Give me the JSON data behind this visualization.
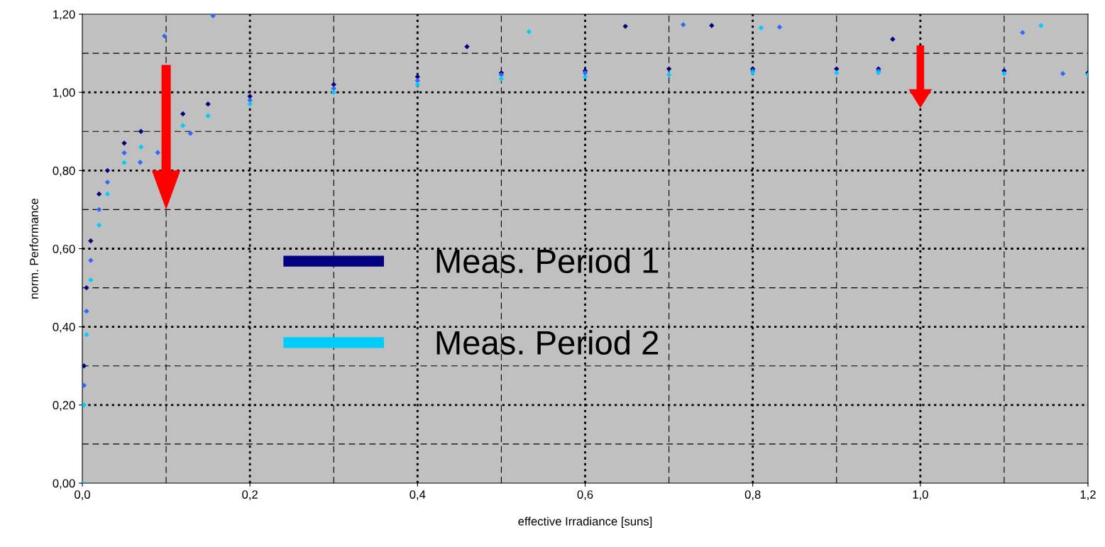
{
  "chart_data": {
    "type": "scatter",
    "xlabel": "effective Irradiance [suns]",
    "ylabel": "norm. Performance",
    "xlim": [
      0,
      1.2
    ],
    "ylim": [
      0,
      1.2
    ],
    "xticks": [
      {
        "value": 0,
        "label": "0,0"
      },
      {
        "value": 0.2,
        "label": "0,2"
      },
      {
        "value": 0.4,
        "label": "0,4"
      },
      {
        "value": 0.6,
        "label": "0,6"
      },
      {
        "value": 0.8,
        "label": "0,8"
      },
      {
        "value": 1.0,
        "label": "1,0"
      },
      {
        "value": 1.2,
        "label": "1,2"
      }
    ],
    "yticks": [
      {
        "value": 0,
        "label": "0,00"
      },
      {
        "value": 0.2,
        "label": "0,20"
      },
      {
        "value": 0.4,
        "label": "0,40"
      },
      {
        "value": 0.6,
        "label": "0,60"
      },
      {
        "value": 0.8,
        "label": "0,80"
      },
      {
        "value": 1.0,
        "label": "1,00"
      },
      {
        "value": 1.2,
        "label": "1,20"
      }
    ],
    "grid": true,
    "legend": "center",
    "marker": "diamond",
    "series": [
      {
        "name": "Meas. Period 1",
        "color": "#000080",
        "x": [
          0,
          0.002,
          0.005,
          0.01,
          0.02,
          0.03,
          0.05,
          0.07,
          0.12,
          0.15,
          0.2,
          0.3,
          0.4,
          0.5,
          0.6,
          0.7,
          0.8,
          0.9,
          0.95,
          1.1,
          1.2,
          0.648,
          0.751,
          0.967,
          0.459
        ],
        "values": [
          0,
          0.3,
          0.5,
          0.62,
          0.74,
          0.8,
          0.87,
          0.9,
          0.945,
          0.97,
          0.99,
          1.02,
          1.04,
          1.05,
          1.055,
          1.06,
          1.06,
          1.06,
          1.06,
          1.055,
          1.05,
          1.169,
          1.171,
          1.136,
          1.117
        ]
      },
      {
        "color": "#3366ff",
        "x": [
          0,
          0.002,
          0.005,
          0.01,
          0.02,
          0.03,
          0.05,
          0.069,
          0.09,
          0.129,
          0.2,
          0.3,
          0.4,
          0.5,
          0.6,
          0.8,
          0.95,
          1.17,
          0.717,
          0.832,
          1.122,
          0.098,
          0.156
        ],
        "values": [
          0,
          0.25,
          0.44,
          0.57,
          0.7,
          0.77,
          0.845,
          0.821,
          0.846,
          0.895,
          0.98,
          1.01,
          1.03,
          1.045,
          1.05,
          1.055,
          1.055,
          1.048,
          1.173,
          1.167,
          1.153,
          1.144,
          1.196
        ]
      },
      {
        "name": "Meas. Period 2",
        "color": "#00ccff",
        "x": [
          0,
          0.002,
          0.005,
          0.01,
          0.02,
          0.03,
          0.05,
          0.07,
          0.12,
          0.15,
          0.2,
          0.3,
          0.4,
          0.5,
          0.6,
          0.7,
          0.8,
          0.9,
          0.95,
          1.1,
          1.2,
          0.533,
          1.144,
          0.81
        ],
        "values": [
          0,
          0.2,
          0.38,
          0.52,
          0.66,
          0.74,
          0.82,
          0.86,
          0.915,
          0.94,
          0.97,
          1.0,
          1.02,
          1.035,
          1.04,
          1.045,
          1.05,
          1.05,
          1.05,
          1.048,
          1.045,
          1.155,
          1.171,
          1.165
        ]
      }
    ]
  }
}
